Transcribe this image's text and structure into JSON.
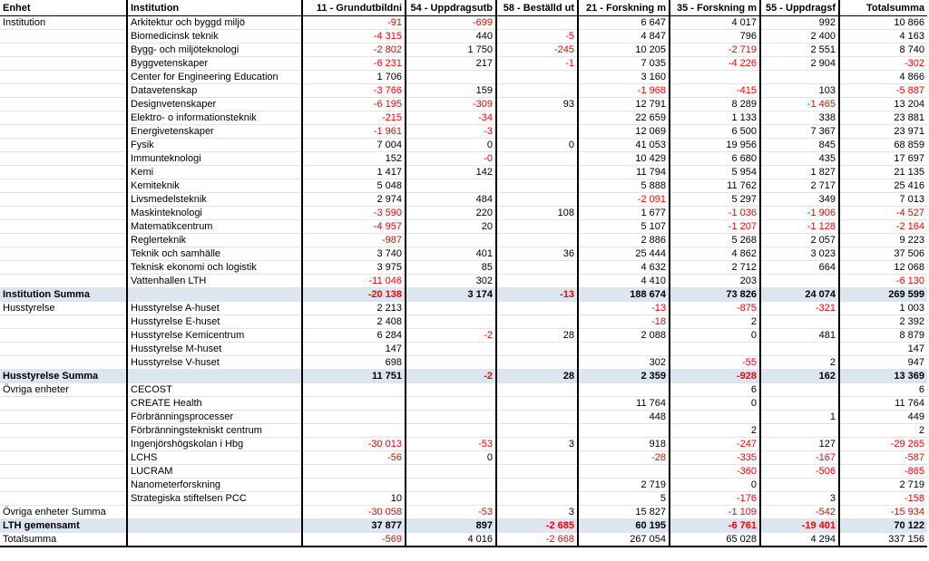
{
  "table": {
    "header": [
      "Enhet",
      "Institution",
      "11 - Grundutbildni",
      "54 - Uppdragsutb",
      "58 - Beställd ut",
      "21 - Forskning m",
      "35 - Forskning m",
      "55 - Uppdragsf",
      "Totalsumma"
    ],
    "rows": [
      [
        "Institution",
        "Arkitektur och byggd miljö",
        "-91",
        "-699",
        null,
        "6 647",
        "4 017",
        "992",
        "10 866"
      ],
      [
        null,
        "Biomedicinsk teknik",
        "-4 315",
        "440",
        "-5",
        "4 847",
        "796",
        "2 400",
        "4 163"
      ],
      [
        null,
        "Bygg- och miljöteknologi",
        "-2 802",
        "1 750",
        "-245",
        "10 205",
        "-2 719",
        "2 551",
        "8 740"
      ],
      [
        null,
        "Byggvetenskaper",
        "-6 231",
        "217",
        "-1",
        "7 035",
        "-4 226",
        "2 904",
        "-302"
      ],
      [
        null,
        "Center for Engineering Education",
        "1 706",
        null,
        null,
        "3 160",
        null,
        null,
        "4 866"
      ],
      [
        null,
        "Datavetenskap",
        "-3 766",
        "159",
        null,
        "-1 968",
        "-415",
        "103",
        "-5 887"
      ],
      [
        null,
        "Designvetenskaper",
        "-6 195",
        "-309",
        "93",
        "12 791",
        "8 289",
        "-1 465",
        "13 204"
      ],
      [
        null,
        "Elektro- o informationsteknik",
        "-215",
        "-34",
        null,
        "22 659",
        "1 133",
        "338",
        "23 881"
      ],
      [
        null,
        "Energivetenskaper",
        "-1 961",
        "-3",
        null,
        "12 069",
        "6 500",
        "7 367",
        "23 971"
      ],
      [
        null,
        "Fysik",
        "7 004",
        "0",
        "0",
        "41 053",
        "19 956",
        "845",
        "68 859"
      ],
      [
        null,
        "Immunteknologi",
        "152",
        "-0",
        null,
        "10 429",
        "6 680",
        "435",
        "17 697"
      ],
      [
        null,
        "Kemi",
        "1 417",
        "142",
        null,
        "11 794",
        "5 954",
        "1 827",
        "21 135"
      ],
      [
        null,
        "Kemiteknik",
        "5 048",
        null,
        null,
        "5 888",
        "11 762",
        "2 717",
        "25 416"
      ],
      [
        null,
        "Livsmedelsteknik",
        "2 974",
        "484",
        null,
        "-2 091",
        "5 297",
        "349",
        "7 013"
      ],
      [
        null,
        "Maskinteknologi",
        "-3 590",
        "220",
        "108",
        "1 677",
        "-1 036",
        "-1 906",
        "-4 527"
      ],
      [
        null,
        "Matematikcentrum",
        "-4 957",
        "20",
        null,
        "5 107",
        "-1 207",
        "-1 128",
        "-2 164"
      ],
      [
        null,
        "Reglerteknik",
        "-987",
        null,
        null,
        "2 886",
        "5 268",
        "2 057",
        "9 223"
      ],
      [
        null,
        "Teknik och samhälle",
        "3 740",
        "401",
        "36",
        "25 444",
        "4 862",
        "3 023",
        "37 506"
      ],
      [
        null,
        "Teknisk ekonomi och logistik",
        "3 975",
        "85",
        null,
        "4 632",
        "2 712",
        "664",
        "12 068"
      ],
      [
        null,
        "Vattenhallen LTH",
        "-11 046",
        "302",
        null,
        "4 410",
        "203",
        null,
        "-6 130"
      ],
      [
        "Institution Summa",
        null,
        "-20 138",
        "3 174",
        "-13",
        "188 674",
        "73 826",
        "24 074",
        "269 599"
      ],
      [
        "Husstyrelse",
        "Husstyrelse A-huset",
        "2 213",
        null,
        null,
        "-13",
        "-875",
        "-321",
        "1 003"
      ],
      [
        null,
        "Husstyrelse E-huset",
        "2 408",
        null,
        null,
        "-18",
        "2",
        null,
        "2 392"
      ],
      [
        null,
        "Husstyrelse Kemicentrum",
        "6 284",
        "-2",
        "28",
        "2 088",
        "0",
        "481",
        "8 879"
      ],
      [
        null,
        "Husstyrelse M-huset",
        "147",
        null,
        null,
        null,
        null,
        null,
        "147"
      ],
      [
        null,
        "Husstyrelse V-huset",
        "698",
        null,
        null,
        "302",
        "-55",
        "2",
        "947"
      ],
      [
        "Husstyrelse Summa",
        null,
        "11 751",
        "-2",
        "28",
        "2 359",
        "-928",
        "162",
        "13 369"
      ],
      [
        "Övriga enheter",
        "CECOST",
        null,
        null,
        null,
        null,
        "6",
        null,
        "6"
      ],
      [
        null,
        "CREATE Health",
        null,
        null,
        null,
        "11 764",
        "0",
        null,
        "11 764"
      ],
      [
        null,
        "Förbränningsprocesser",
        null,
        null,
        null,
        "448",
        null,
        "1",
        "449"
      ],
      [
        null,
        "Förbränningstekniskt centrum",
        null,
        null,
        null,
        null,
        "2",
        null,
        "2"
      ],
      [
        null,
        "Ingenjörshögskolan i Hbg",
        "-30 013",
        "-53",
        "3",
        "918",
        "-247",
        "127",
        "-29 265"
      ],
      [
        null,
        "LCHS",
        "-56",
        "0",
        null,
        "-28",
        "-335",
        "-167",
        "-587"
      ],
      [
        null,
        "LUCRAM",
        null,
        null,
        null,
        null,
        "-360",
        "-506",
        "-865"
      ],
      [
        null,
        "Nanometerforskning",
        null,
        null,
        null,
        "2 719",
        "0",
        null,
        "2 719"
      ],
      [
        null,
        "Strategiska stiftelsen PCC",
        "10",
        null,
        null,
        "5",
        "-176",
        "3",
        "-158"
      ],
      [
        "Övriga enheter Summa",
        null,
        "-30 058",
        "-53",
        "3",
        "15 827",
        "-1 109",
        "-542",
        "-15 934"
      ],
      [
        "LTH gemensamt",
        null,
        "37 877",
        "897",
        "-2 685",
        "60 195",
        "-6 761",
        "-19 401",
        "70 122"
      ],
      [
        "Totalsumma",
        null,
        "-569",
        "4 016",
        "-2 668",
        "267 054",
        "65 028",
        "4 294",
        "337 156"
      ]
    ]
  }
}
